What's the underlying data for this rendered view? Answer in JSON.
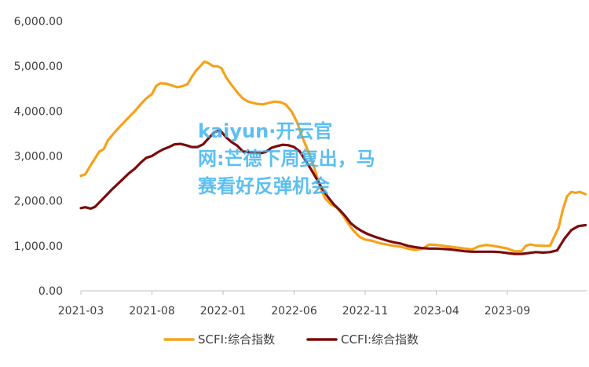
{
  "chart_data": {
    "type": "line",
    "title": "",
    "xlabel": "",
    "ylabel": "",
    "ylim": [
      0,
      6000
    ],
    "yticks": [
      "0.00",
      "1,000.00",
      "2,000.00",
      "3,000.00",
      "4,000.00",
      "5,000.00",
      "6,000.00"
    ],
    "ytick_values": [
      0,
      1000,
      2000,
      3000,
      4000,
      5000,
      6000
    ],
    "x_tick_labels": [
      "2021-03",
      "2021-08",
      "2022-01",
      "2022-06",
      "2022-11",
      "2023-04",
      "2023-09"
    ],
    "x_tick_months": [
      0,
      5,
      10,
      15,
      20,
      25,
      30
    ],
    "x_range_months": [
      0,
      35.5
    ],
    "legend_position": "bottom",
    "grid": false,
    "series": [
      {
        "name": "SCFI:综合指数",
        "color": "#f5a21b",
        "points": [
          [
            0.0,
            2560
          ],
          [
            0.3,
            2590
          ],
          [
            0.7,
            2800
          ],
          [
            1.0,
            2950
          ],
          [
            1.3,
            3100
          ],
          [
            1.6,
            3150
          ],
          [
            1.9,
            3350
          ],
          [
            2.3,
            3500
          ],
          [
            2.7,
            3640
          ],
          [
            3.0,
            3740
          ],
          [
            3.4,
            3870
          ],
          [
            3.8,
            4000
          ],
          [
            4.2,
            4150
          ],
          [
            4.6,
            4280
          ],
          [
            5.0,
            4380
          ],
          [
            5.3,
            4560
          ],
          [
            5.6,
            4620
          ],
          [
            6.0,
            4610
          ],
          [
            6.4,
            4570
          ],
          [
            6.8,
            4530
          ],
          [
            7.2,
            4560
          ],
          [
            7.5,
            4600
          ],
          [
            7.8,
            4760
          ],
          [
            8.1,
            4900
          ],
          [
            8.4,
            5000
          ],
          [
            8.7,
            5100
          ],
          [
            9.0,
            5060
          ],
          [
            9.3,
            5000
          ],
          [
            9.6,
            5000
          ],
          [
            9.9,
            4950
          ],
          [
            10.2,
            4760
          ],
          [
            10.5,
            4620
          ],
          [
            10.8,
            4500
          ],
          [
            11.1,
            4380
          ],
          [
            11.4,
            4280
          ],
          [
            11.7,
            4220
          ],
          [
            12.0,
            4190
          ],
          [
            12.4,
            4160
          ],
          [
            12.8,
            4150
          ],
          [
            13.2,
            4180
          ],
          [
            13.6,
            4210
          ],
          [
            14.0,
            4200
          ],
          [
            14.4,
            4150
          ],
          [
            14.8,
            4000
          ],
          [
            15.2,
            3760
          ],
          [
            15.6,
            3400
          ],
          [
            16.0,
            3100
          ],
          [
            16.3,
            2850
          ],
          [
            16.6,
            2550
          ],
          [
            16.9,
            2250
          ],
          [
            17.2,
            2050
          ],
          [
            17.6,
            1920
          ],
          [
            18.0,
            1850
          ],
          [
            18.4,
            1700
          ],
          [
            18.8,
            1500
          ],
          [
            19.2,
            1330
          ],
          [
            19.6,
            1200
          ],
          [
            20.0,
            1140
          ],
          [
            20.5,
            1110
          ],
          [
            21.0,
            1060
          ],
          [
            21.5,
            1030
          ],
          [
            22.0,
            1000
          ],
          [
            22.5,
            980
          ],
          [
            23.0,
            940
          ],
          [
            23.5,
            910
          ],
          [
            24.0,
            930
          ],
          [
            24.5,
            1030
          ],
          [
            25.0,
            1020
          ],
          [
            25.5,
            1000
          ],
          [
            26.0,
            980
          ],
          [
            26.5,
            960
          ],
          [
            27.0,
            940
          ],
          [
            27.5,
            920
          ],
          [
            28.0,
            990
          ],
          [
            28.5,
            1020
          ],
          [
            29.0,
            1000
          ],
          [
            29.5,
            970
          ],
          [
            30.0,
            940
          ],
          [
            30.5,
            880
          ],
          [
            31.0,
            880
          ],
          [
            31.3,
            1000
          ],
          [
            31.6,
            1030
          ],
          [
            32.0,
            1010
          ],
          [
            32.5,
            1000
          ],
          [
            33.0,
            1000
          ],
          [
            33.3,
            1200
          ],
          [
            33.6,
            1400
          ],
          [
            33.9,
            1800
          ],
          [
            34.2,
            2100
          ],
          [
            34.5,
            2200
          ],
          [
            34.8,
            2180
          ],
          [
            35.1,
            2200
          ],
          [
            35.5,
            2150
          ]
        ]
      },
      {
        "name": "CCFI:综合指数",
        "color": "#7b0c0c",
        "points": [
          [
            0.0,
            1840
          ],
          [
            0.3,
            1860
          ],
          [
            0.7,
            1830
          ],
          [
            1.0,
            1870
          ],
          [
            1.4,
            2000
          ],
          [
            1.8,
            2130
          ],
          [
            2.2,
            2260
          ],
          [
            2.6,
            2380
          ],
          [
            3.0,
            2500
          ],
          [
            3.4,
            2620
          ],
          [
            3.8,
            2720
          ],
          [
            4.2,
            2850
          ],
          [
            4.6,
            2960
          ],
          [
            5.0,
            3000
          ],
          [
            5.4,
            3080
          ],
          [
            5.8,
            3150
          ],
          [
            6.2,
            3200
          ],
          [
            6.6,
            3260
          ],
          [
            7.0,
            3270
          ],
          [
            7.4,
            3240
          ],
          [
            7.8,
            3200
          ],
          [
            8.2,
            3200
          ],
          [
            8.6,
            3260
          ],
          [
            9.0,
            3400
          ],
          [
            9.4,
            3530
          ],
          [
            9.8,
            3570
          ],
          [
            10.2,
            3420
          ],
          [
            10.6,
            3310
          ],
          [
            11.0,
            3230
          ],
          [
            11.4,
            3100
          ],
          [
            11.8,
            3090
          ],
          [
            12.2,
            3080
          ],
          [
            12.6,
            3060
          ],
          [
            13.0,
            3090
          ],
          [
            13.4,
            3180
          ],
          [
            13.8,
            3220
          ],
          [
            14.2,
            3250
          ],
          [
            14.6,
            3240
          ],
          [
            15.0,
            3200
          ],
          [
            15.4,
            3100
          ],
          [
            15.8,
            2900
          ],
          [
            16.2,
            2700
          ],
          [
            16.6,
            2480
          ],
          [
            17.0,
            2260
          ],
          [
            17.4,
            2080
          ],
          [
            17.8,
            1920
          ],
          [
            18.2,
            1800
          ],
          [
            18.6,
            1660
          ],
          [
            19.0,
            1500
          ],
          [
            19.4,
            1400
          ],
          [
            19.8,
            1320
          ],
          [
            20.2,
            1260
          ],
          [
            20.6,
            1210
          ],
          [
            21.0,
            1170
          ],
          [
            21.5,
            1120
          ],
          [
            22.0,
            1080
          ],
          [
            22.5,
            1050
          ],
          [
            23.0,
            1000
          ],
          [
            23.5,
            970
          ],
          [
            24.0,
            950
          ],
          [
            24.5,
            940
          ],
          [
            25.0,
            940
          ],
          [
            25.5,
            930
          ],
          [
            26.0,
            920
          ],
          [
            26.5,
            900
          ],
          [
            27.0,
            880
          ],
          [
            27.5,
            870
          ],
          [
            28.0,
            870
          ],
          [
            28.5,
            870
          ],
          [
            29.0,
            870
          ],
          [
            29.5,
            860
          ],
          [
            30.0,
            840
          ],
          [
            30.5,
            820
          ],
          [
            31.0,
            820
          ],
          [
            31.5,
            840
          ],
          [
            32.0,
            860
          ],
          [
            32.5,
            850
          ],
          [
            33.0,
            860
          ],
          [
            33.5,
            900
          ],
          [
            34.0,
            1150
          ],
          [
            34.5,
            1350
          ],
          [
            35.0,
            1440
          ],
          [
            35.5,
            1460
          ]
        ]
      }
    ]
  },
  "watermark": {
    "line1": "kaiyun·开云官",
    "line2": "网:芒德下周复出，马",
    "line3": "赛看好反弹机会"
  }
}
